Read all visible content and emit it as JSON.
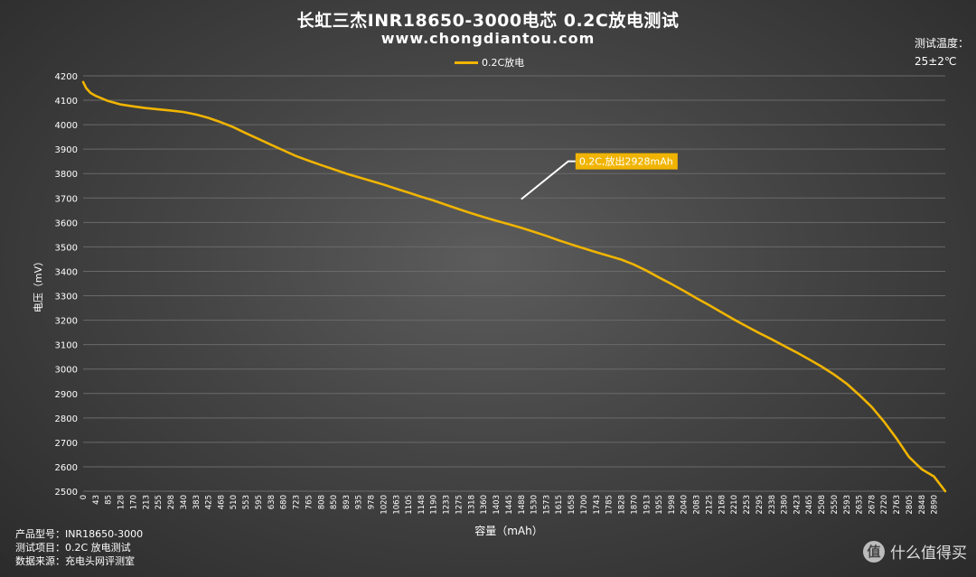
{
  "header": {
    "title": "长虹三杰INR18650-3000电芯 0.2C放电测试",
    "website": "www.chongdiantou.com",
    "temp_label": "测试温度：",
    "temp_value": "25±2℃"
  },
  "info": {
    "line1": "产品型号：INR18650-3000",
    "line2": "测试项目：0.2C 放电测试",
    "line3": "数据来源：充电头网评测室"
  },
  "watermark": {
    "logo": "值",
    "text": "什么值得买"
  },
  "chart_data": {
    "type": "line",
    "title": "长虹三杰INR18650-3000电芯 0.2C放电测试",
    "subtitle": "www.chongdiantou.com",
    "xlabel": "容量（mAh）",
    "ylabel": "电压（mV）",
    "xlim": [
      0,
      2928
    ],
    "ylim": [
      2500,
      4200
    ],
    "grid": true,
    "legend": "top-center",
    "y_ticks": [
      2500,
      2600,
      2700,
      2800,
      2900,
      3000,
      3100,
      3200,
      3300,
      3400,
      3500,
      3600,
      3700,
      3800,
      3900,
      4000,
      4100,
      4200
    ],
    "x_ticks": [
      0,
      43,
      85,
      128,
      170,
      213,
      255,
      298,
      340,
      383,
      425,
      468,
      510,
      553,
      595,
      638,
      680,
      723,
      765,
      808,
      850,
      893,
      935,
      978,
      1020,
      1063,
      1105,
      1148,
      1190,
      1233,
      1275,
      1318,
      1360,
      1403,
      1445,
      1488,
      1530,
      1573,
      1615,
      1658,
      1700,
      1743,
      1785,
      1828,
      1870,
      1913,
      1955,
      1998,
      2040,
      2083,
      2125,
      2168,
      2210,
      2253,
      2295,
      2338,
      2380,
      2423,
      2465,
      2508,
      2550,
      2593,
      2635,
      2678,
      2720,
      2763,
      2805,
      2848,
      2890
    ],
    "series": [
      {
        "name": "0.2C放电",
        "color": "#f0b400",
        "points": [
          [
            0,
            4175
          ],
          [
            10,
            4150
          ],
          [
            25,
            4130
          ],
          [
            43,
            4118
          ],
          [
            85,
            4097
          ],
          [
            128,
            4083
          ],
          [
            170,
            4075
          ],
          [
            213,
            4068
          ],
          [
            255,
            4063
          ],
          [
            298,
            4058
          ],
          [
            340,
            4052
          ],
          [
            383,
            4042
          ],
          [
            425,
            4028
          ],
          [
            468,
            4010
          ],
          [
            510,
            3990
          ],
          [
            553,
            3965
          ],
          [
            595,
            3942
          ],
          [
            638,
            3918
          ],
          [
            680,
            3895
          ],
          [
            723,
            3872
          ],
          [
            765,
            3853
          ],
          [
            808,
            3835
          ],
          [
            850,
            3818
          ],
          [
            893,
            3800
          ],
          [
            935,
            3785
          ],
          [
            978,
            3770
          ],
          [
            1020,
            3755
          ],
          [
            1063,
            3738
          ],
          [
            1105,
            3722
          ],
          [
            1148,
            3705
          ],
          [
            1190,
            3690
          ],
          [
            1233,
            3672
          ],
          [
            1275,
            3655
          ],
          [
            1318,
            3638
          ],
          [
            1360,
            3622
          ],
          [
            1403,
            3607
          ],
          [
            1445,
            3593
          ],
          [
            1488,
            3578
          ],
          [
            1530,
            3562
          ],
          [
            1573,
            3545
          ],
          [
            1615,
            3527
          ],
          [
            1658,
            3510
          ],
          [
            1700,
            3494
          ],
          [
            1743,
            3478
          ],
          [
            1785,
            3463
          ],
          [
            1828,
            3448
          ],
          [
            1870,
            3428
          ],
          [
            1913,
            3403
          ],
          [
            1955,
            3375
          ],
          [
            1998,
            3348
          ],
          [
            2040,
            3320
          ],
          [
            2083,
            3290
          ],
          [
            2125,
            3262
          ],
          [
            2168,
            3232
          ],
          [
            2210,
            3203
          ],
          [
            2253,
            3175
          ],
          [
            2295,
            3148
          ],
          [
            2338,
            3122
          ],
          [
            2380,
            3095
          ],
          [
            2423,
            3068
          ],
          [
            2465,
            3040
          ],
          [
            2508,
            3010
          ],
          [
            2550,
            2978
          ],
          [
            2593,
            2940
          ],
          [
            2635,
            2895
          ],
          [
            2678,
            2845
          ],
          [
            2720,
            2785
          ],
          [
            2763,
            2715
          ],
          [
            2805,
            2640
          ],
          [
            2848,
            2590
          ],
          [
            2890,
            2560
          ],
          [
            2928,
            2500
          ]
        ]
      }
    ],
    "annotation": {
      "text": "0.2C,放出2928mAh",
      "x": 1488,
      "y": 3695
    }
  }
}
